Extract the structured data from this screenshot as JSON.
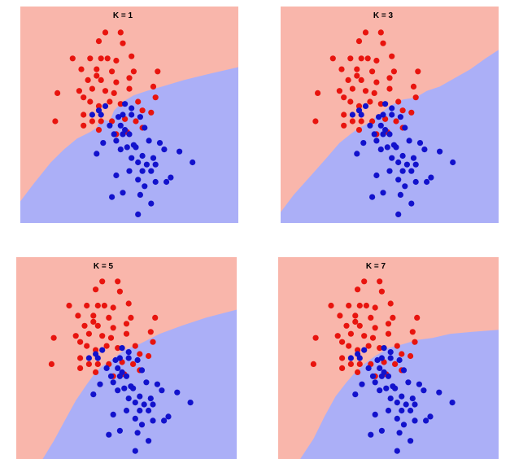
{
  "colors": {
    "red_region": "#f9b6ab",
    "blue_region": "#abaff7",
    "red_point": "#e8140e",
    "blue_point": "#1212cc"
  },
  "chart_data": [
    {
      "type": "scatter",
      "title": "K = 1",
      "xlim": [
        0,
        100
      ],
      "ylim": [
        0,
        100
      ],
      "grid": false,
      "red": [
        [
          39,
          88
        ],
        [
          46,
          88
        ],
        [
          36,
          84
        ],
        [
          47,
          83
        ],
        [
          24,
          76
        ],
        [
          32,
          76
        ],
        [
          37,
          76
        ],
        [
          40,
          76
        ],
        [
          44,
          75
        ],
        [
          51,
          77
        ],
        [
          28,
          71
        ],
        [
          35,
          71
        ],
        [
          42,
          70
        ],
        [
          52,
          70
        ],
        [
          35,
          68
        ],
        [
          31,
          66
        ],
        [
          37,
          66
        ],
        [
          44,
          65
        ],
        [
          50,
          67
        ],
        [
          63,
          70
        ],
        [
          17,
          60
        ],
        [
          27,
          61
        ],
        [
          33,
          62
        ],
        [
          39,
          61
        ],
        [
          43,
          60
        ],
        [
          50,
          62
        ],
        [
          61,
          63
        ],
        [
          29,
          58
        ],
        [
          32,
          56
        ],
        [
          36,
          54
        ],
        [
          41,
          56
        ],
        [
          46,
          55
        ],
        [
          54,
          56
        ],
        [
          62,
          58
        ],
        [
          16,
          47
        ],
        [
          29,
          50
        ],
        [
          33,
          47
        ],
        [
          37,
          47
        ],
        [
          42,
          47
        ],
        [
          48,
          48
        ],
        [
          53,
          47
        ],
        [
          56,
          52
        ],
        [
          60,
          51
        ],
        [
          29,
          45
        ],
        [
          36,
          43
        ],
        [
          44,
          41
        ],
        [
          49,
          42
        ],
        [
          56,
          44
        ]
      ],
      "blue": [
        [
          36,
          52
        ],
        [
          39,
          54
        ],
        [
          48,
          55
        ],
        [
          51,
          53
        ],
        [
          33,
          50
        ],
        [
          37,
          50
        ],
        [
          45,
          49
        ],
        [
          47,
          50
        ],
        [
          51,
          50
        ],
        [
          55,
          49
        ],
        [
          41,
          45
        ],
        [
          46,
          45
        ],
        [
          48,
          43
        ],
        [
          57,
          44
        ],
        [
          43,
          41
        ],
        [
          47,
          41
        ],
        [
          50,
          41
        ],
        [
          38,
          37
        ],
        [
          44,
          38
        ],
        [
          52,
          36
        ],
        [
          46,
          34
        ],
        [
          49,
          35
        ],
        [
          53,
          35
        ],
        [
          59,
          38
        ],
        [
          64,
          37
        ],
        [
          56,
          31
        ],
        [
          61,
          30
        ],
        [
          35,
          32
        ],
        [
          51,
          30
        ],
        [
          54,
          28
        ],
        [
          58,
          27
        ],
        [
          62,
          27
        ],
        [
          66,
          34
        ],
        [
          50,
          24
        ],
        [
          56,
          24
        ],
        [
          60,
          24
        ],
        [
          44,
          22
        ],
        [
          54,
          20
        ],
        [
          62,
          19
        ],
        [
          67,
          19
        ],
        [
          69,
          21
        ],
        [
          57,
          17
        ],
        [
          73,
          33
        ],
        [
          79,
          28
        ],
        [
          47,
          14
        ],
        [
          55,
          13
        ],
        [
          42,
          12
        ],
        [
          60,
          9
        ],
        [
          54,
          4
        ]
      ]
    },
    {
      "type": "scatter",
      "title": "K  = 3",
      "xlim": [
        0,
        100
      ],
      "ylim": [
        0,
        100
      ],
      "grid": false,
      "red": [
        [
          39,
          88
        ],
        [
          46,
          88
        ],
        [
          36,
          84
        ],
        [
          47,
          83
        ],
        [
          24,
          76
        ],
        [
          32,
          76
        ],
        [
          37,
          76
        ],
        [
          40,
          76
        ],
        [
          44,
          75
        ],
        [
          51,
          77
        ],
        [
          28,
          71
        ],
        [
          35,
          71
        ],
        [
          42,
          70
        ],
        [
          52,
          70
        ],
        [
          35,
          68
        ],
        [
          31,
          66
        ],
        [
          37,
          66
        ],
        [
          44,
          65
        ],
        [
          50,
          67
        ],
        [
          63,
          70
        ],
        [
          17,
          60
        ],
        [
          27,
          61
        ],
        [
          33,
          62
        ],
        [
          39,
          61
        ],
        [
          43,
          60
        ],
        [
          50,
          62
        ],
        [
          61,
          63
        ],
        [
          29,
          58
        ],
        [
          32,
          56
        ],
        [
          36,
          54
        ],
        [
          41,
          56
        ],
        [
          46,
          55
        ],
        [
          54,
          56
        ],
        [
          62,
          58
        ],
        [
          16,
          47
        ],
        [
          29,
          50
        ],
        [
          33,
          47
        ],
        [
          37,
          47
        ],
        [
          42,
          47
        ],
        [
          48,
          48
        ],
        [
          53,
          47
        ],
        [
          56,
          52
        ],
        [
          60,
          51
        ],
        [
          29,
          45
        ],
        [
          36,
          43
        ],
        [
          44,
          41
        ],
        [
          49,
          42
        ],
        [
          56,
          44
        ]
      ],
      "blue": [
        [
          36,
          52
        ],
        [
          39,
          54
        ],
        [
          48,
          55
        ],
        [
          51,
          53
        ],
        [
          33,
          50
        ],
        [
          37,
          50
        ],
        [
          45,
          49
        ],
        [
          47,
          50
        ],
        [
          51,
          50
        ],
        [
          55,
          49
        ],
        [
          41,
          45
        ],
        [
          46,
          45
        ],
        [
          48,
          43
        ],
        [
          57,
          44
        ],
        [
          43,
          41
        ],
        [
          47,
          41
        ],
        [
          50,
          41
        ],
        [
          38,
          37
        ],
        [
          44,
          38
        ],
        [
          52,
          36
        ],
        [
          46,
          34
        ],
        [
          49,
          35
        ],
        [
          53,
          35
        ],
        [
          59,
          38
        ],
        [
          64,
          37
        ],
        [
          56,
          31
        ],
        [
          61,
          30
        ],
        [
          35,
          32
        ],
        [
          51,
          30
        ],
        [
          54,
          28
        ],
        [
          58,
          27
        ],
        [
          62,
          27
        ],
        [
          66,
          34
        ],
        [
          50,
          24
        ],
        [
          56,
          24
        ],
        [
          60,
          24
        ],
        [
          44,
          22
        ],
        [
          54,
          20
        ],
        [
          62,
          19
        ],
        [
          67,
          19
        ],
        [
          69,
          21
        ],
        [
          57,
          17
        ],
        [
          73,
          33
        ],
        [
          79,
          28
        ],
        [
          47,
          14
        ],
        [
          55,
          13
        ],
        [
          42,
          12
        ],
        [
          60,
          9
        ],
        [
          54,
          4
        ]
      ]
    },
    {
      "type": "scatter",
      "title": "K = 5",
      "xlim": [
        0,
        100
      ],
      "ylim": [
        0,
        100
      ],
      "grid": false,
      "red": [
        [
          39,
          88
        ],
        [
          46,
          88
        ],
        [
          36,
          84
        ],
        [
          47,
          83
        ],
        [
          24,
          76
        ],
        [
          32,
          76
        ],
        [
          37,
          76
        ],
        [
          40,
          76
        ],
        [
          44,
          75
        ],
        [
          51,
          77
        ],
        [
          28,
          71
        ],
        [
          35,
          71
        ],
        [
          42,
          70
        ],
        [
          52,
          70
        ],
        [
          35,
          68
        ],
        [
          31,
          66
        ],
        [
          37,
          66
        ],
        [
          44,
          65
        ],
        [
          50,
          67
        ],
        [
          63,
          70
        ],
        [
          17,
          60
        ],
        [
          27,
          61
        ],
        [
          33,
          62
        ],
        [
          39,
          61
        ],
        [
          43,
          60
        ],
        [
          50,
          62
        ],
        [
          61,
          63
        ],
        [
          29,
          58
        ],
        [
          32,
          56
        ],
        [
          36,
          54
        ],
        [
          41,
          56
        ],
        [
          46,
          55
        ],
        [
          54,
          56
        ],
        [
          62,
          58
        ],
        [
          16,
          47
        ],
        [
          29,
          50
        ],
        [
          33,
          47
        ],
        [
          37,
          47
        ],
        [
          42,
          47
        ],
        [
          48,
          48
        ],
        [
          53,
          47
        ],
        [
          56,
          52
        ],
        [
          60,
          51
        ],
        [
          29,
          45
        ],
        [
          36,
          43
        ],
        [
          44,
          41
        ],
        [
          49,
          42
        ],
        [
          56,
          44
        ]
      ],
      "blue": [
        [
          36,
          52
        ],
        [
          39,
          54
        ],
        [
          48,
          55
        ],
        [
          51,
          53
        ],
        [
          33,
          50
        ],
        [
          37,
          50
        ],
        [
          45,
          49
        ],
        [
          47,
          50
        ],
        [
          51,
          50
        ],
        [
          55,
          49
        ],
        [
          41,
          45
        ],
        [
          46,
          45
        ],
        [
          48,
          43
        ],
        [
          57,
          44
        ],
        [
          43,
          41
        ],
        [
          47,
          41
        ],
        [
          50,
          41
        ],
        [
          38,
          37
        ],
        [
          44,
          38
        ],
        [
          52,
          36
        ],
        [
          46,
          34
        ],
        [
          49,
          35
        ],
        [
          53,
          35
        ],
        [
          59,
          38
        ],
        [
          64,
          37
        ],
        [
          56,
          31
        ],
        [
          61,
          30
        ],
        [
          35,
          32
        ],
        [
          51,
          30
        ],
        [
          54,
          28
        ],
        [
          58,
          27
        ],
        [
          62,
          27
        ],
        [
          66,
          34
        ],
        [
          50,
          24
        ],
        [
          56,
          24
        ],
        [
          60,
          24
        ],
        [
          44,
          22
        ],
        [
          54,
          20
        ],
        [
          62,
          19
        ],
        [
          67,
          19
        ],
        [
          69,
          21
        ],
        [
          57,
          17
        ],
        [
          73,
          33
        ],
        [
          79,
          28
        ],
        [
          47,
          14
        ],
        [
          55,
          13
        ],
        [
          42,
          12
        ],
        [
          60,
          9
        ],
        [
          54,
          4
        ]
      ]
    },
    {
      "type": "scatter",
      "title": "K = 7",
      "xlim": [
        0,
        100
      ],
      "ylim": [
        0,
        100
      ],
      "grid": false,
      "red": [
        [
          39,
          88
        ],
        [
          46,
          88
        ],
        [
          36,
          84
        ],
        [
          47,
          83
        ],
        [
          24,
          76
        ],
        [
          32,
          76
        ],
        [
          37,
          76
        ],
        [
          40,
          76
        ],
        [
          44,
          75
        ],
        [
          51,
          77
        ],
        [
          28,
          71
        ],
        [
          35,
          71
        ],
        [
          42,
          70
        ],
        [
          52,
          70
        ],
        [
          35,
          68
        ],
        [
          31,
          66
        ],
        [
          37,
          66
        ],
        [
          44,
          65
        ],
        [
          50,
          67
        ],
        [
          63,
          70
        ],
        [
          17,
          60
        ],
        [
          27,
          61
        ],
        [
          33,
          62
        ],
        [
          39,
          61
        ],
        [
          43,
          60
        ],
        [
          50,
          62
        ],
        [
          61,
          63
        ],
        [
          29,
          58
        ],
        [
          32,
          56
        ],
        [
          36,
          54
        ],
        [
          41,
          56
        ],
        [
          46,
          55
        ],
        [
          54,
          56
        ],
        [
          62,
          58
        ],
        [
          16,
          47
        ],
        [
          29,
          50
        ],
        [
          33,
          47
        ],
        [
          37,
          47
        ],
        [
          42,
          47
        ],
        [
          48,
          48
        ],
        [
          53,
          47
        ],
        [
          56,
          52
        ],
        [
          60,
          51
        ],
        [
          29,
          45
        ],
        [
          36,
          43
        ],
        [
          44,
          41
        ],
        [
          49,
          42
        ],
        [
          56,
          44
        ]
      ],
      "blue": [
        [
          36,
          52
        ],
        [
          39,
          54
        ],
        [
          48,
          55
        ],
        [
          51,
          53
        ],
        [
          33,
          50
        ],
        [
          37,
          50
        ],
        [
          45,
          49
        ],
        [
          47,
          50
        ],
        [
          51,
          50
        ],
        [
          55,
          49
        ],
        [
          41,
          45
        ],
        [
          46,
          45
        ],
        [
          48,
          43
        ],
        [
          57,
          44
        ],
        [
          43,
          41
        ],
        [
          47,
          41
        ],
        [
          50,
          41
        ],
        [
          38,
          37
        ],
        [
          44,
          38
        ],
        [
          52,
          36
        ],
        [
          46,
          34
        ],
        [
          49,
          35
        ],
        [
          53,
          35
        ],
        [
          59,
          38
        ],
        [
          64,
          37
        ],
        [
          56,
          31
        ],
        [
          61,
          30
        ],
        [
          35,
          32
        ],
        [
          51,
          30
        ],
        [
          54,
          28
        ],
        [
          58,
          27
        ],
        [
          62,
          27
        ],
        [
          66,
          34
        ],
        [
          50,
          24
        ],
        [
          56,
          24
        ],
        [
          60,
          24
        ],
        [
          44,
          22
        ],
        [
          54,
          20
        ],
        [
          62,
          19
        ],
        [
          67,
          19
        ],
        [
          69,
          21
        ],
        [
          57,
          17
        ],
        [
          73,
          33
        ],
        [
          79,
          28
        ],
        [
          47,
          14
        ],
        [
          55,
          13
        ],
        [
          42,
          12
        ],
        [
          60,
          9
        ],
        [
          54,
          4
        ]
      ]
    }
  ]
}
